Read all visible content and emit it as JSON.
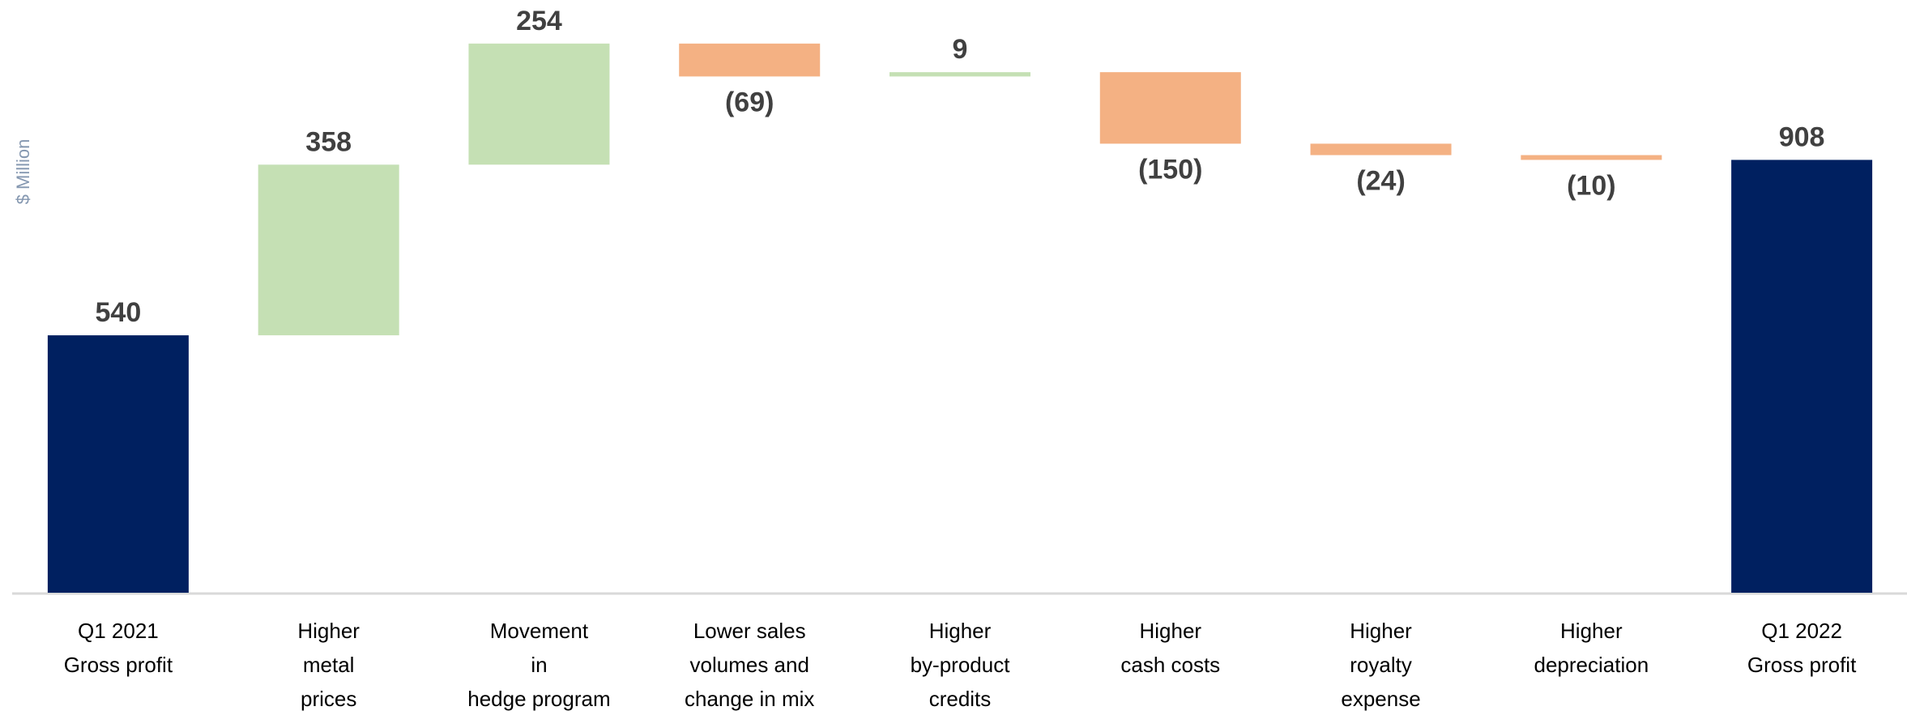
{
  "chart_data": {
    "type": "waterfall",
    "y_label": "$ Million",
    "categories": [
      [
        "Q1 2021",
        "Gross profit"
      ],
      [
        "Higher",
        "metal",
        "prices"
      ],
      [
        "Movement",
        "in",
        "hedge program"
      ],
      [
        "Lower sales",
        "volumes and",
        "change in mix"
      ],
      [
        "Higher",
        "by-product",
        "credits"
      ],
      [
        "Higher",
        "cash costs"
      ],
      [
        "Higher",
        "royalty",
        "expense"
      ],
      [
        "Higher",
        "depreciation"
      ],
      [
        "Q1 2022",
        "Gross profit"
      ]
    ],
    "values": [
      540,
      358,
      254,
      -69,
      9,
      -150,
      -24,
      -10,
      908
    ],
    "value_labels": [
      "540",
      "358",
      "254",
      "(69)",
      "9",
      "(150)",
      "(24)",
      "(10)",
      "908"
    ],
    "total_color": "#002060",
    "increase_color": "#c5e0b4",
    "decrease_color": "#f4b183",
    "ylim": [
      0,
      1240
    ]
  }
}
